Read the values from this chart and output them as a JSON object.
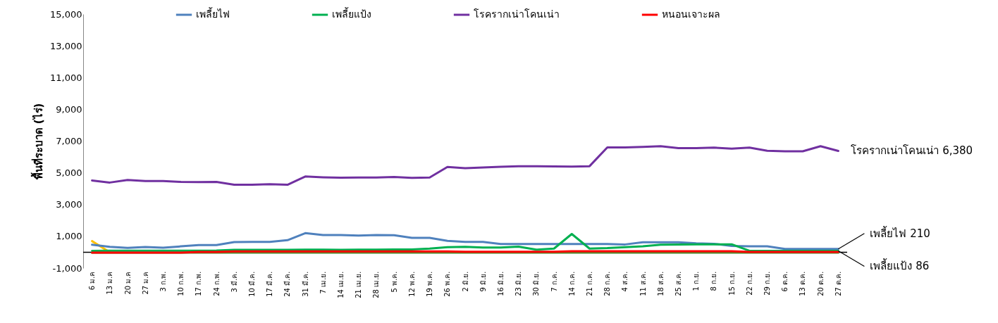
{
  "chart_data": {
    "type": "line",
    "ylabel": "พื้นที่ระบาด (ไร่)",
    "categories": [
      "6 ม.ค",
      "13 ม.ค",
      "20 ม.ค",
      "27 ม.ค",
      "3 ก.พ.",
      "10 ก.พ.",
      "17 ก.พ.",
      "24 ก.พ.",
      "3 มี.ค.",
      "10 มี.ค.",
      "17 มี.ค.",
      "24 มี.ค.",
      "31 มี.ค.",
      "7 เม.ย.",
      "14 เม.ย.",
      "21 เม.ย.",
      "28 เม.ย.",
      "5 พ.ค.",
      "12 พ.ค.",
      "19 พ.ค.",
      "26 พ.ค.",
      "2 มิ.ย.",
      "9 มิ.ย.",
      "16 มิ.ย.",
      "23 มิ.ย.",
      "30 มิ.ย.",
      "7 ก.ค.",
      "14 ก.ค.",
      "21 ก.ค.",
      "28 ก.ค.",
      "4 ส.ค.",
      "11 ส.ค.",
      "18 ส.ค.",
      "25 ส.ค.",
      "1 ก.ย.",
      "8 ก.ย.",
      "15 ก.ย.",
      "22 ก.ย.",
      "29 ก.ย.",
      "6 ต.ค.",
      "13 ต.ค.",
      "20 ต.ค.",
      "27 ต.ค."
    ],
    "series": [
      {
        "color": "#ffc000",
        "values": [
          700,
          0,
          null,
          null,
          null,
          null,
          null,
          null,
          null,
          null,
          null,
          null,
          null,
          null,
          null,
          null,
          null,
          null,
          null,
          null,
          null,
          null,
          null,
          null,
          null,
          null,
          null,
          null,
          null,
          null,
          null,
          null,
          null,
          null,
          null,
          null,
          null,
          null,
          null,
          null,
          null,
          null,
          null
        ]
      },
      {
        "color": "#4e8a2e",
        "values": [
          -30,
          -30,
          -30,
          -30,
          -30,
          -30,
          -30,
          -30,
          -30,
          -30,
          -30,
          -30,
          -30,
          -30,
          -30,
          -30,
          -30,
          -30,
          -30,
          -30,
          -30,
          -30,
          -30,
          -30,
          -30,
          -30,
          -30,
          -30,
          -30,
          -30,
          -30,
          -30,
          -30,
          -30,
          -30,
          -30,
          -30,
          -30,
          -30,
          -30,
          -30,
          -30,
          -30
        ]
      },
      {
        "name": "เพลี้ยไฟ",
        "color": "#4f81bd",
        "values": [
          470,
          340,
          270,
          330,
          290,
          370,
          450,
          450,
          640,
          650,
          650,
          760,
          1200,
          1080,
          1080,
          1050,
          1080,
          1070,
          910,
          910,
          720,
          650,
          650,
          520,
          520,
          520,
          520,
          520,
          520,
          520,
          490,
          630,
          630,
          630,
          560,
          530,
          400,
          370,
          370,
          210,
          210,
          210,
          210
        ]
      },
      {
        "name": "เพลี้ยแป้ง",
        "color": "#00b050",
        "values": [
          90,
          100,
          100,
          100,
          100,
          100,
          100,
          110,
          150,
          150,
          150,
          150,
          160,
          160,
          150,
          160,
          160,
          170,
          170,
          230,
          320,
          340,
          300,
          300,
          350,
          160,
          230,
          1150,
          230,
          260,
          320,
          370,
          470,
          480,
          500,
          500,
          500,
          90,
          90,
          90,
          90,
          90,
          86
        ]
      },
      {
        "name": "โรครากเน่าโคนเน่า",
        "color": "#7030a0",
        "values": [
          4520,
          4390,
          4550,
          4490,
          4480,
          4430,
          4420,
          4430,
          4250,
          4250,
          4290,
          4250,
          4770,
          4720,
          4690,
          4710,
          4710,
          4740,
          4680,
          4710,
          5370,
          5290,
          5340,
          5380,
          5420,
          5420,
          5400,
          5390,
          5420,
          6600,
          6600,
          6630,
          6680,
          6560,
          6560,
          6590,
          6520,
          6590,
          6390,
          6360,
          6360,
          6680,
          6380
        ]
      },
      {
        "name": "หนอนเจาะผล",
        "color": "#ff0000",
        "values": [
          -20,
          -20,
          -20,
          -20,
          -20,
          -20,
          20,
          20,
          50,
          50,
          50,
          50,
          50,
          50,
          50,
          50,
          50,
          50,
          50,
          50,
          50,
          30,
          30,
          30,
          30,
          30,
          30,
          60,
          60,
          60,
          60,
          60,
          60,
          60,
          60,
          60,
          60,
          20,
          20,
          20,
          20,
          20,
          20
        ]
      }
    ],
    "ylim": [
      -1000,
      15000
    ],
    "yticks": [
      {
        "value": -1000,
        "label": "-1,000"
      },
      {
        "value": 1000,
        "label": "1,000"
      },
      {
        "value": 3000,
        "label": "3,000"
      },
      {
        "value": 5000,
        "label": "5,000"
      },
      {
        "value": 7000,
        "label": "7,000"
      },
      {
        "value": 9000,
        "label": "9,000"
      },
      {
        "value": 11000,
        "label": "11,000"
      },
      {
        "value": 13000,
        "label": "13,000"
      },
      {
        "value": 15000,
        "label": "15,000"
      }
    ],
    "ref_lines": [
      {
        "axis": "y",
        "value": 0,
        "color": "#000000"
      }
    ],
    "legend": "top",
    "annotations": [
      {
        "text": "โรครากเน่าโคนเน่า 6,380",
        "x": "27 ต.ค.",
        "y": 6380
      },
      {
        "text": "เพลี้ยไฟ 210",
        "x": "27 ต.ค.",
        "y": 210
      },
      {
        "text": "เพลี้ยแป้ง 86",
        "x": "27 ต.ค.",
        "y": 86
      }
    ]
  }
}
